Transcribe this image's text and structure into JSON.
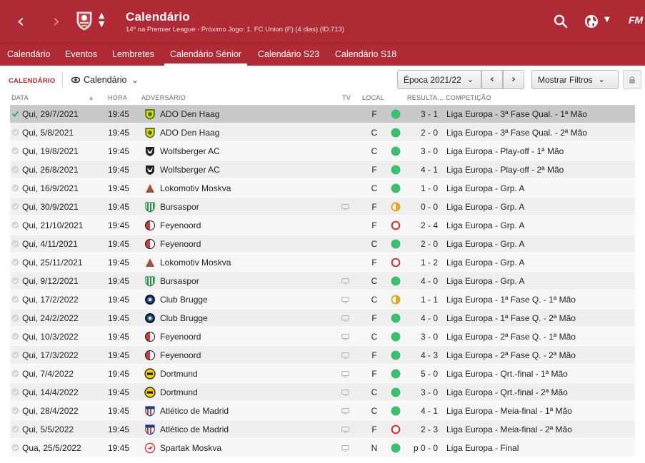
{
  "header": {
    "title": "Calendário",
    "subtitle": "14º na Premier League - Próximo Jogo: 1. FC Union (F) (4 dias) (ID:713)",
    "back_glyph": "‹",
    "forward_glyph": "›",
    "logo": "FM",
    "accent_color": "#b02a36"
  },
  "tabs": [
    "Calendário",
    "Eventos",
    "Lembretes",
    "Calendário Sénior",
    "Calendário S23",
    "Calendário S18"
  ],
  "active_tab": "Calendário Sénior",
  "toolbar": {
    "section_label": "CALENDÁRIO",
    "view_label": "Calendário",
    "season_label": "Época 2021/22",
    "prev_glyph": "‹",
    "next_glyph": "›",
    "filters_label": "Mostrar Filtros"
  },
  "columns": {
    "date": "DATA",
    "time": "HORA",
    "opponent": "ADVERSÁRIO",
    "tv": "TV",
    "venue": "LOCAL",
    "result": "RESULTA...",
    "competition": "COMPETIÇÃO"
  },
  "status_colors": {
    "win": "#3dbf6f",
    "draw": "#e2a82a",
    "loss": "#d23a3a"
  },
  "fixtures": [
    {
      "date": "Qui, 29/7/2021",
      "time": "19:45",
      "opponent": "ADO Den Haag",
      "badge": "ado-den-haag-badge-icon",
      "tv": false,
      "venue": "F",
      "outcome": "win",
      "score": "3 - 1",
      "competition": "Liga Europa - 3ª Fase Qual. - 1ª Mão",
      "selected": true
    },
    {
      "date": "Qui, 5/8/2021",
      "time": "19:45",
      "opponent": "ADO Den Haag",
      "badge": "ado-den-haag-badge-icon",
      "tv": false,
      "venue": "C",
      "outcome": "win",
      "score": "2 - 0",
      "competition": "Liga Europa - 3ª Fase Qual. - 2ª Mão"
    },
    {
      "date": "Qui, 19/8/2021",
      "time": "19:45",
      "opponent": "Wolfsberger AC",
      "badge": "wolfsberger-badge-icon",
      "tv": false,
      "venue": "C",
      "outcome": "win",
      "score": "3 - 0",
      "competition": "Liga Europa - Play-off - 1ª Mão"
    },
    {
      "date": "Qui, 26/8/2021",
      "time": "19:45",
      "opponent": "Wolfsberger AC",
      "badge": "wolfsberger-badge-icon",
      "tv": false,
      "venue": "F",
      "outcome": "win",
      "score": "4 - 1",
      "competition": "Liga Europa - Play-off - 2ª Mão"
    },
    {
      "date": "Qui, 16/9/2021",
      "time": "19:45",
      "opponent": "Lokomotiv Moskva",
      "badge": "lokomotiv-badge-icon",
      "tv": false,
      "venue": "C",
      "outcome": "win",
      "score": "1 - 0",
      "competition": "Liga Europa - Grp. A"
    },
    {
      "date": "Qui, 30/9/2021",
      "time": "19:45",
      "opponent": "Bursaspor",
      "badge": "bursaspor-badge-icon",
      "tv": true,
      "venue": "F",
      "outcome": "draw",
      "score": "0 - 0",
      "competition": "Liga Europa - Grp. A"
    },
    {
      "date": "Qui, 21/10/2021",
      "time": "19:45",
      "opponent": "Feyenoord",
      "badge": "feyenoord-badge-icon",
      "tv": false,
      "venue": "F",
      "outcome": "loss",
      "score": "2 - 4",
      "competition": "Liga Europa - Grp. A"
    },
    {
      "date": "Qui, 4/11/2021",
      "time": "19:45",
      "opponent": "Feyenoord",
      "badge": "feyenoord-badge-icon",
      "tv": false,
      "venue": "C",
      "outcome": "win",
      "score": "2 - 0",
      "competition": "Liga Europa - Grp. A"
    },
    {
      "date": "Qui, 25/11/2021",
      "time": "19:45",
      "opponent": "Lokomotiv Moskva",
      "badge": "lokomotiv-badge-icon",
      "tv": false,
      "venue": "F",
      "outcome": "loss",
      "score": "1 - 2",
      "competition": "Liga Europa - Grp. A"
    },
    {
      "date": "Qui, 9/12/2021",
      "time": "19:45",
      "opponent": "Bursaspor",
      "badge": "bursaspor-badge-icon",
      "tv": true,
      "venue": "C",
      "outcome": "win",
      "score": "4 - 0",
      "competition": "Liga Europa - Grp. A"
    },
    {
      "date": "Qui, 17/2/2022",
      "time": "19:45",
      "opponent": "Club Brugge",
      "badge": "club-brugge-badge-icon",
      "tv": true,
      "venue": "C",
      "outcome": "draw",
      "score": "1 - 1",
      "competition": "Liga Europa - 1ª Fase Q. - 1ª Mão"
    },
    {
      "date": "Qui, 24/2/2022",
      "time": "19:45",
      "opponent": "Club Brugge",
      "badge": "club-brugge-badge-icon",
      "tv": true,
      "venue": "F",
      "outcome": "win",
      "score": "4 - 0",
      "competition": "Liga Europa - 1ª Fase Q. - 2ª Mão"
    },
    {
      "date": "Qui, 10/3/2022",
      "time": "19:45",
      "opponent": "Feyenoord",
      "badge": "feyenoord-badge-icon",
      "tv": true,
      "venue": "C",
      "outcome": "win",
      "score": "3 - 0",
      "competition": "Liga Europa - 2ª Fase Q. - 1ª Mão"
    },
    {
      "date": "Qui, 17/3/2022",
      "time": "19:45",
      "opponent": "Feyenoord",
      "badge": "feyenoord-badge-icon",
      "tv": true,
      "venue": "F",
      "outcome": "win",
      "score": "4 - 3",
      "competition": "Liga Europa - 2ª Fase Q. - 2ª Mão"
    },
    {
      "date": "Qui, 7/4/2022",
      "time": "19:45",
      "opponent": "Dortmund",
      "badge": "dortmund-badge-icon",
      "tv": true,
      "venue": "F",
      "outcome": "win",
      "score": "5 - 0",
      "competition": "Liga Europa - Qrt.-final - 1ª Mão"
    },
    {
      "date": "Qui, 14/4/2022",
      "time": "19:45",
      "opponent": "Dortmund",
      "badge": "dortmund-badge-icon",
      "tv": true,
      "venue": "C",
      "outcome": "win",
      "score": "3 - 0",
      "competition": "Liga Europa - Qrt.-final - 2ª Mão"
    },
    {
      "date": "Qui, 28/4/2022",
      "time": "19:45",
      "opponent": "Atlético de Madrid",
      "badge": "atletico-badge-icon",
      "tv": true,
      "venue": "C",
      "outcome": "win",
      "score": "4 - 1",
      "competition": "Liga Europa - Meia-final - 1ª Mão"
    },
    {
      "date": "Qui, 5/5/2022",
      "time": "19:45",
      "opponent": "Atlético de Madrid",
      "badge": "atletico-badge-icon",
      "tv": true,
      "venue": "F",
      "outcome": "loss",
      "score": "2 - 3",
      "competition": "Liga Europa - Meia-final - 2ª Mão"
    },
    {
      "date": "Qua, 25/5/2022",
      "time": "19:45",
      "opponent": "Spartak Moskva",
      "badge": "spartak-badge-icon",
      "tv": true,
      "venue": "N",
      "outcome": "win",
      "score": "p 0 - 0",
      "competition": "Liga Europa - Final"
    }
  ]
}
